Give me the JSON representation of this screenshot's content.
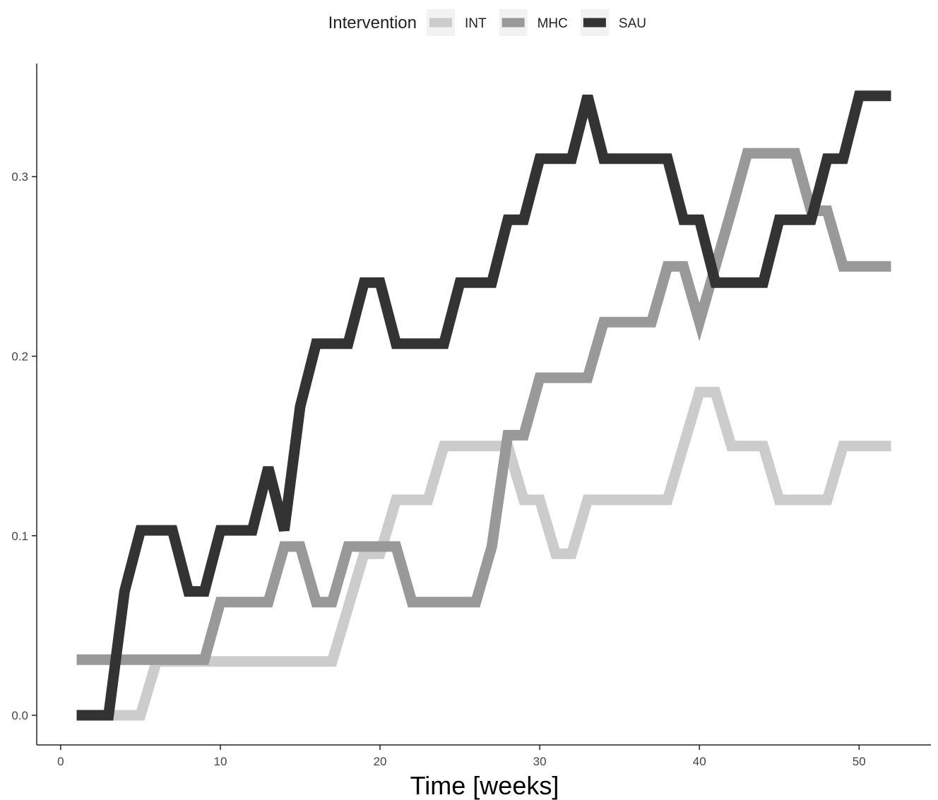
{
  "chart_data": {
    "type": "line",
    "title": "",
    "xlabel": "Time [weeks]",
    "ylabel": "",
    "xlim": [
      -1.5,
      54.5
    ],
    "ylim": [
      -0.0165,
      0.363
    ],
    "x_ticks": [
      0,
      10,
      20,
      30,
      40,
      50
    ],
    "y_ticks": [
      0.0,
      0.1,
      0.2,
      0.3
    ],
    "x_tick_labels": [
      "0",
      "10",
      "20",
      "30",
      "40",
      "50"
    ],
    "y_tick_labels": [
      "0.0",
      "0.1",
      "0.2",
      "0.3"
    ],
    "grid": false,
    "legend": {
      "title": "Intervention",
      "position": "top"
    },
    "series": [
      {
        "name": "INT",
        "color": "#cccccc",
        "x": [
          1,
          2,
          3,
          4,
          5,
          6,
          7,
          8,
          9,
          10,
          11,
          12,
          13,
          14,
          15,
          16,
          17,
          18,
          19,
          20,
          21,
          22,
          23,
          24,
          25,
          26,
          27,
          28,
          29,
          30,
          31,
          32,
          33,
          34,
          35,
          36,
          37,
          38,
          39,
          40,
          41,
          42,
          43,
          44,
          45,
          46,
          47,
          48,
          49,
          50,
          51,
          52
        ],
        "y": [
          0,
          0,
          0,
          0,
          0,
          0.03,
          0.03,
          0.03,
          0.03,
          0.03,
          0.03,
          0.03,
          0.03,
          0.03,
          0.03,
          0.03,
          0.03,
          0.06,
          0.09,
          0.09,
          0.12,
          0.12,
          0.12,
          0.15,
          0.15,
          0.15,
          0.15,
          0.15,
          0.12,
          0.12,
          0.09,
          0.09,
          0.12,
          0.12,
          0.12,
          0.12,
          0.12,
          0.12,
          0.15,
          0.18,
          0.18,
          0.15,
          0.15,
          0.15,
          0.12,
          0.12,
          0.12,
          0.12,
          0.15,
          0.15,
          0.15,
          0.15
        ]
      },
      {
        "name": "MHC",
        "color": "#999999",
        "x": [
          1,
          2,
          3,
          4,
          5,
          6,
          7,
          8,
          9,
          10,
          11,
          12,
          13,
          14,
          15,
          16,
          17,
          18,
          19,
          20,
          21,
          22,
          23,
          24,
          25,
          26,
          27,
          28,
          29,
          30,
          31,
          32,
          33,
          34,
          35,
          36,
          37,
          38,
          39,
          40,
          41,
          42,
          43,
          44,
          45,
          46,
          47,
          48,
          49,
          50,
          51,
          52
        ],
        "y": [
          0.031,
          0.031,
          0.031,
          0.031,
          0.031,
          0.031,
          0.031,
          0.031,
          0.031,
          0.063,
          0.063,
          0.063,
          0.063,
          0.094,
          0.094,
          0.063,
          0.063,
          0.094,
          0.094,
          0.094,
          0.094,
          0.063,
          0.063,
          0.063,
          0.063,
          0.063,
          0.094,
          0.156,
          0.156,
          0.188,
          0.188,
          0.188,
          0.188,
          0.219,
          0.219,
          0.219,
          0.219,
          0.25,
          0.25,
          0.219,
          0.25,
          0.281,
          0.313,
          0.313,
          0.313,
          0.313,
          0.281,
          0.281,
          0.25,
          0.25,
          0.25,
          0.25
        ]
      },
      {
        "name": "SAU",
        "color": "#333333",
        "x": [
          1,
          2,
          3,
          4,
          5,
          6,
          7,
          8,
          9,
          10,
          11,
          12,
          13,
          14,
          15,
          16,
          17,
          18,
          19,
          20,
          21,
          22,
          23,
          24,
          25,
          26,
          27,
          28,
          29,
          30,
          31,
          32,
          33,
          34,
          35,
          36,
          37,
          38,
          39,
          40,
          41,
          42,
          43,
          44,
          45,
          46,
          47,
          48,
          49,
          50,
          51,
          52
        ],
        "y": [
          0,
          0,
          0,
          0.069,
          0.103,
          0.103,
          0.103,
          0.069,
          0.069,
          0.103,
          0.103,
          0.103,
          0.138,
          0.103,
          0.172,
          0.207,
          0.207,
          0.207,
          0.241,
          0.241,
          0.207,
          0.207,
          0.207,
          0.207,
          0.241,
          0.241,
          0.241,
          0.276,
          0.276,
          0.31,
          0.31,
          0.31,
          0.345,
          0.31,
          0.31,
          0.31,
          0.31,
          0.31,
          0.276,
          0.276,
          0.241,
          0.241,
          0.241,
          0.241,
          0.276,
          0.276,
          0.276,
          0.31,
          0.31,
          0.345,
          0.345,
          0.345
        ]
      }
    ]
  }
}
